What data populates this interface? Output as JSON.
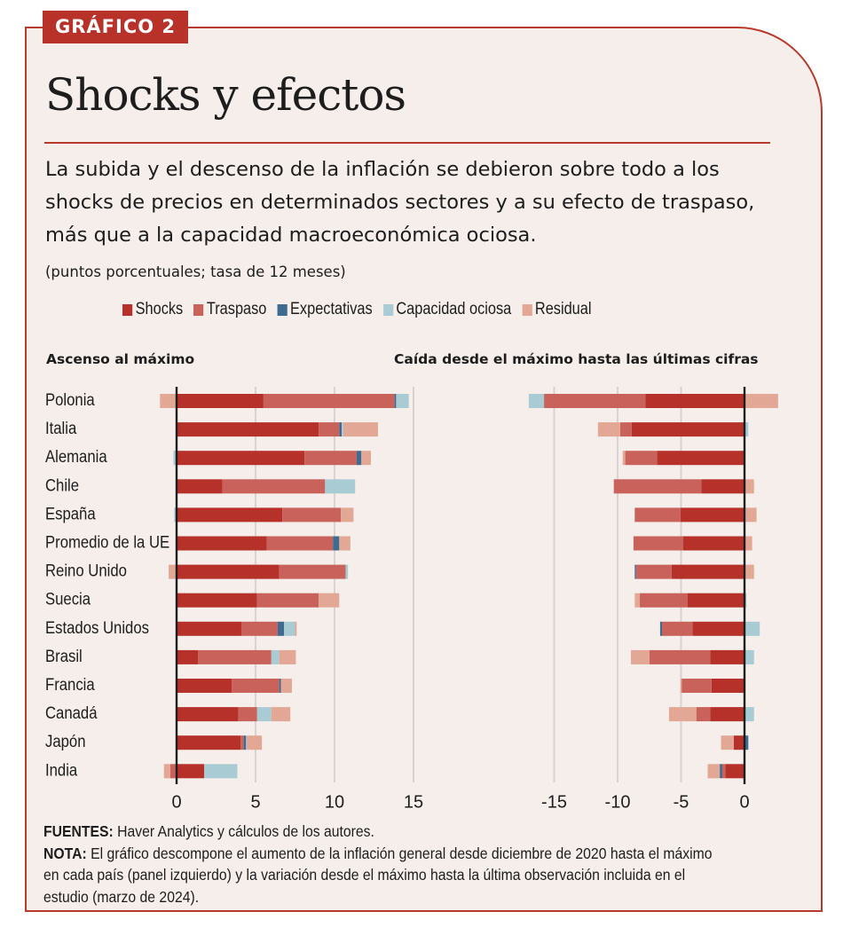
{
  "header": {
    "tag": "GRÁFICO 2",
    "title": "Shocks y efectos",
    "lead": "La subida y el descenso de la inflación se debieron sobre todo a los shocks de precios en determinados sectores y a su efecto de traspaso, más que a la capacidad macroeconómica ociosa.",
    "units": "(puntos porcentuales; tasa de 12 meses)"
  },
  "colors": {
    "border": "#b83a2b",
    "background": "#f5eeeb",
    "tag_bg": "#b8322a"
  },
  "legend": [
    {
      "label": "Shocks",
      "color": "#b5312a"
    },
    {
      "label": "Traspaso",
      "color": "#c9625a"
    },
    {
      "label": "Expectativas",
      "color": "#3f6b91"
    },
    {
      "label": "Capacidad ociosa",
      "color": "#a9cbd4"
    },
    {
      "label": "Residual",
      "color": "#e3a796"
    }
  ],
  "chart_data": [
    {
      "type": "bar",
      "orientation": "horizontal",
      "stacked": true,
      "title": "Ascenso al máximo",
      "xlim": [
        -1.5,
        15.5
      ],
      "xticks": [
        0,
        5,
        10,
        15
      ],
      "grid": true,
      "categories": [
        "Polonia",
        "Italia",
        "Alemania",
        "Chile",
        "España",
        "Promedio de la UE",
        "Reino Unido",
        "Suecia",
        "Estados Unidos",
        "Brasil",
        "Francia",
        "Canadá",
        "Japón",
        "India"
      ],
      "series": [
        {
          "name": "Shocks",
          "values": [
            5.5,
            9.0,
            8.1,
            2.9,
            6.7,
            5.7,
            6.5,
            5.1,
            4.1,
            1.35,
            3.5,
            3.9,
            4.05,
            1.75
          ]
        },
        {
          "name": "Traspaso",
          "values": [
            8.3,
            1.3,
            3.3,
            6.5,
            3.7,
            4.2,
            4.2,
            3.9,
            2.3,
            4.65,
            3.0,
            1.2,
            0.2,
            -0.4
          ]
        },
        {
          "name": "Expectativas",
          "values": [
            0.1,
            0.15,
            0.3,
            0,
            0,
            0.4,
            0,
            0,
            0.4,
            0,
            0.1,
            0,
            0.15,
            0
          ]
        },
        {
          "name": "Capacidad ociosa",
          "values": [
            0.8,
            0.1,
            -0.2,
            1.9,
            -0.15,
            0,
            0.15,
            0,
            0.7,
            0.5,
            0,
            0.9,
            0.05,
            2.1
          ]
        },
        {
          "name": "Residual",
          "values": [
            -1.05,
            2.2,
            0.6,
            0,
            0.8,
            0.7,
            -0.5,
            1.3,
            0.1,
            1.05,
            0.7,
            1.2,
            0.95,
            -0.4
          ]
        }
      ]
    },
    {
      "type": "bar",
      "orientation": "horizontal",
      "stacked": true,
      "title": "Caída desde el máximo hasta las últimas cifras",
      "xlim": [
        -16.5,
        2.7
      ],
      "xticks": [
        -15,
        -10,
        -5,
        0
      ],
      "grid": true,
      "categories": [
        "Polonia",
        "Italia",
        "Alemania",
        "Chile",
        "España",
        "Promedio de la UE",
        "Reino Unido",
        "Suecia",
        "Estados Unidos",
        "Brasil",
        "Francia",
        "Canadá",
        "Japón",
        "India"
      ],
      "series": [
        {
          "name": "Shocks",
          "values": [
            -7.8,
            -8.9,
            -6.9,
            -3.4,
            -5.05,
            -4.85,
            -5.75,
            -4.5,
            -4.1,
            -2.7,
            -2.6,
            -2.7,
            -0.85,
            -1.5
          ]
        },
        {
          "name": "Traspaso",
          "values": [
            -8.0,
            -0.9,
            -2.5,
            -6.9,
            -3.6,
            -3.9,
            -2.8,
            -3.75,
            -2.4,
            -4.8,
            -2.35,
            -1.1,
            0,
            -0.25
          ]
        },
        {
          "name": "Expectativas",
          "values": [
            0,
            0,
            0,
            0,
            0,
            0,
            -0.1,
            0,
            -0.15,
            0,
            0,
            0,
            0.3,
            -0.2
          ]
        },
        {
          "name": "Capacidad ociosa",
          "values": [
            -1.2,
            0.3,
            0.05,
            0,
            0.1,
            0,
            0,
            0.15,
            1.2,
            0.75,
            0,
            0.75,
            0,
            0
          ]
        },
        {
          "name": "Residual",
          "values": [
            2.65,
            -1.75,
            -0.2,
            0.75,
            0.85,
            0.6,
            0.75,
            -0.4,
            0,
            -1.45,
            -0.1,
            -2.15,
            -1.0,
            -0.95
          ]
        }
      ]
    }
  ],
  "footer": {
    "sources_label": "FUENTES:",
    "sources_text": " Haver Analytics y cálculos de los autores.",
    "note_label": "NOTA:",
    "note_text": " El gráfico descompone el aumento de la inflación general desde diciembre de 2020 hasta el máximo en cada país (panel izquierdo) y la variación desde el máximo hasta la última observación incluida en el estudio (marzo de 2024)."
  }
}
